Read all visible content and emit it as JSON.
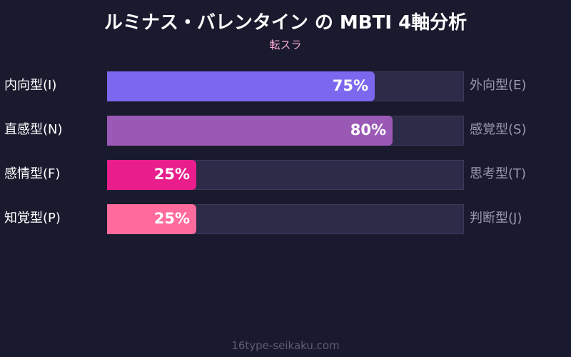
{
  "chart_data": {
    "type": "bar",
    "title": "ルミナス・バレンタイン の MBTI 4軸分析",
    "subtitle": "転スラ",
    "xlim": [
      0,
      100
    ],
    "rows": [
      {
        "left": "内向型(I)",
        "right": "外向型(E)",
        "value": 75,
        "label": "75%",
        "color": "#7b68ee"
      },
      {
        "left": "直感型(N)",
        "right": "感覚型(S)",
        "value": 80,
        "label": "80%",
        "color": "#9b59b6"
      },
      {
        "left": "感情型(F)",
        "right": "思考型(T)",
        "value": 25,
        "label": "25%",
        "color": "#e91e8c"
      },
      {
        "left": "知覚型(P)",
        "right": "判断型(J)",
        "value": 25,
        "label": "25%",
        "color": "#ff6b9d"
      }
    ]
  },
  "footer": "16type-seikaku.com"
}
